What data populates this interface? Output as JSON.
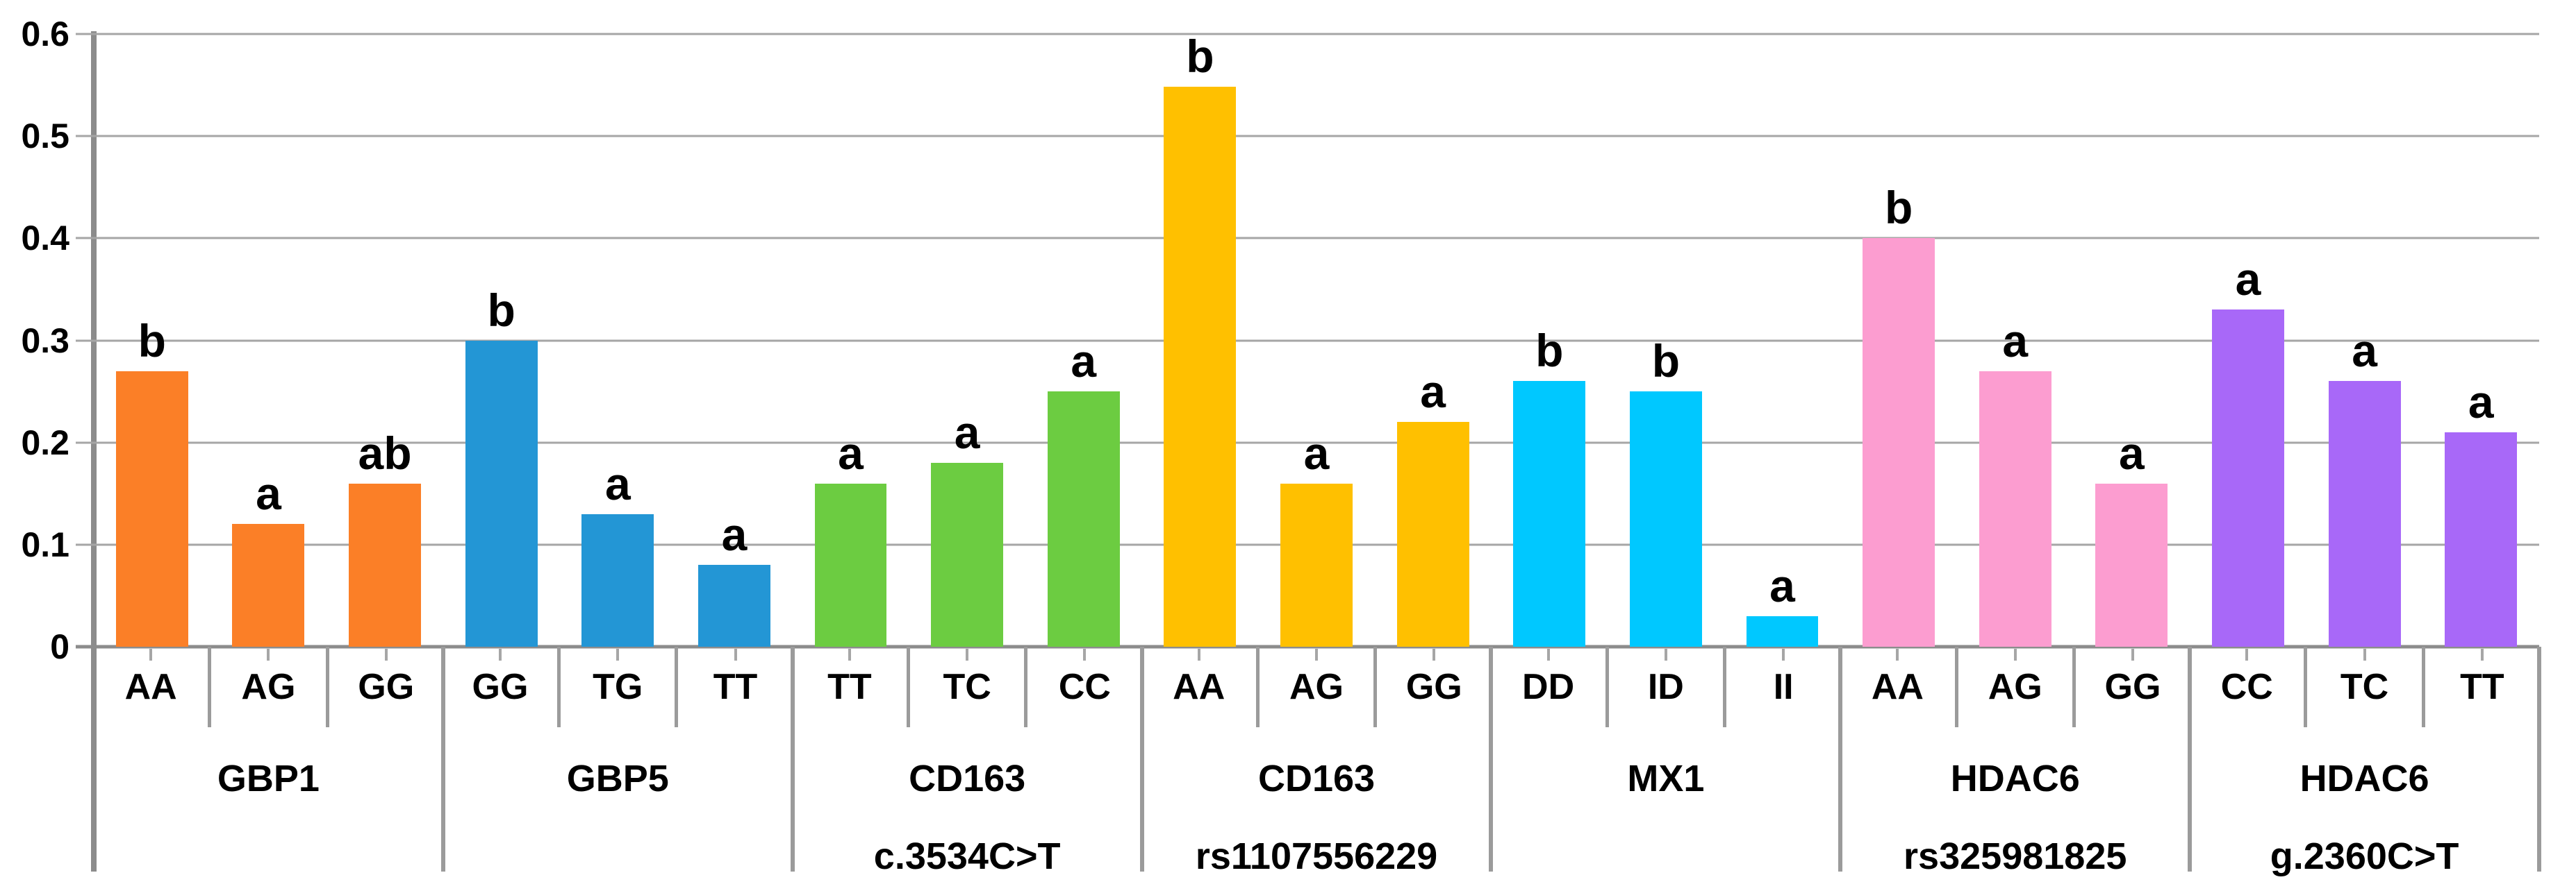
{
  "chart_data": {
    "type": "bar",
    "title": "",
    "xlabel": "",
    "ylabel": "",
    "ylim": [
      0,
      0.6
    ],
    "grid": true,
    "legend": "none",
    "yticks": [
      {
        "value": 0,
        "label": "0"
      },
      {
        "value": 0.1,
        "label": "0.1"
      },
      {
        "value": 0.2,
        "label": "0.2"
      },
      {
        "value": 0.3,
        "label": "0.3"
      },
      {
        "value": 0.4,
        "label": "0.4"
      },
      {
        "value": 0.5,
        "label": "0.5"
      },
      {
        "value": 0.6,
        "label": "0.6"
      }
    ],
    "groups": [
      {
        "gene": "GBP1",
        "gene_lines": [
          "GBP1"
        ],
        "color": "#FB7F27",
        "bars": [
          {
            "genotype": "AA",
            "value": 0.27,
            "letter": "b"
          },
          {
            "genotype": "AG",
            "value": 0.12,
            "letter": "a"
          },
          {
            "genotype": "GG",
            "value": 0.16,
            "letter": "ab"
          }
        ]
      },
      {
        "gene": "GBP5",
        "gene_lines": [
          "GBP5"
        ],
        "color": "#2396D5",
        "bars": [
          {
            "genotype": "GG",
            "value": 0.3,
            "letter": "b"
          },
          {
            "genotype": "TG",
            "value": 0.13,
            "letter": "a"
          },
          {
            "genotype": "TT",
            "value": 0.08,
            "letter": "a"
          }
        ]
      },
      {
        "gene": "CD163 c.3534C>T",
        "gene_lines": [
          "CD163",
          "c.3534C>T"
        ],
        "color": "#6CCC41",
        "bars": [
          {
            "genotype": "TT",
            "value": 0.16,
            "letter": "a"
          },
          {
            "genotype": "TC",
            "value": 0.18,
            "letter": "a"
          },
          {
            "genotype": "CC",
            "value": 0.25,
            "letter": "a"
          }
        ]
      },
      {
        "gene": "CD163 rs1107556229",
        "gene_lines": [
          "CD163",
          "rs1107556229"
        ],
        "color": "#FFC000",
        "bars": [
          {
            "genotype": "AA",
            "value": 0.56,
            "letter": "b"
          },
          {
            "genotype": "AG",
            "value": 0.16,
            "letter": "a"
          },
          {
            "genotype": "GG",
            "value": 0.22,
            "letter": "a"
          }
        ]
      },
      {
        "gene": "MX1",
        "gene_lines": [
          "MX1"
        ],
        "color": "#00C8FF",
        "bars": [
          {
            "genotype": "DD",
            "value": 0.26,
            "letter": "b"
          },
          {
            "genotype": "ID",
            "value": 0.25,
            "letter": "b"
          },
          {
            "genotype": "II",
            "value": 0.03,
            "letter": "a"
          }
        ]
      },
      {
        "gene": "HDAC6 rs325981825",
        "gene_lines": [
          "HDAC6",
          "rs325981825"
        ],
        "color": "#FC9DD0",
        "bars": [
          {
            "genotype": "AA",
            "value": 0.4,
            "letter": "b"
          },
          {
            "genotype": "AG",
            "value": 0.27,
            "letter": "a"
          },
          {
            "genotype": "GG",
            "value": 0.16,
            "letter": "a"
          }
        ]
      },
      {
        "gene": "HDAC6 g.2360C>T",
        "gene_lines": [
          "HDAC6",
          "g.2360C>T"
        ],
        "color": "#A868F8",
        "bars": [
          {
            "genotype": "CC",
            "value": 0.33,
            "letter": "a"
          },
          {
            "genotype": "TC",
            "value": 0.26,
            "letter": "a"
          },
          {
            "genotype": "TT",
            "value": 0.21,
            "letter": "a"
          }
        ]
      }
    ],
    "colors": {
      "gridline": "#A6A6A6",
      "axis": "#8C8C8C",
      "separator": "#9B9B9B",
      "text": "#000000",
      "background": "#FFFFFF"
    }
  }
}
